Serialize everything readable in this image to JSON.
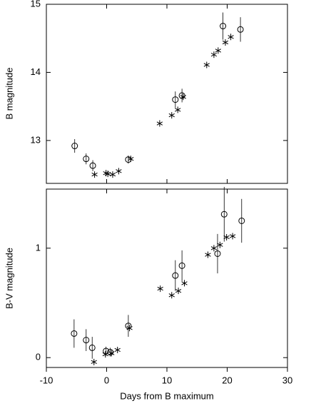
{
  "chart_data": [
    {
      "type": "scatter",
      "ylabel": "B magnitude",
      "xlim": [
        -10,
        30
      ],
      "ylim": [
        12.37,
        15
      ],
      "xticks": [
        -10,
        0,
        10,
        20,
        30
      ],
      "xtick_labels": false,
      "yticks": [
        13,
        14,
        15
      ],
      "color": "#000000",
      "series": [
        {
          "marker": "circle",
          "x": [
            -5.3,
            -3.4,
            -2.3,
            3.6,
            11.4,
            12.5,
            19.3,
            22.2
          ],
          "values": [
            12.92,
            12.73,
            12.63,
            12.72,
            13.6,
            13.66,
            14.68,
            14.63
          ],
          "errors": [
            0.1,
            0.08,
            0.08,
            0.06,
            0.12,
            0.1,
            0.2,
            0.18
          ]
        },
        {
          "marker": "asterisk",
          "x": [
            -2.0,
            -0.1,
            0.2,
            1.0,
            2.0,
            4.0,
            8.8,
            10.8,
            11.8,
            12.7,
            16.6,
            17.8,
            18.5,
            19.7,
            20.6
          ],
          "values": [
            12.5,
            12.52,
            12.51,
            12.5,
            12.55,
            12.73,
            13.25,
            13.37,
            13.45,
            13.64,
            14.11,
            14.26,
            14.32,
            14.44,
            14.52
          ]
        }
      ]
    },
    {
      "type": "scatter",
      "xlabel": "Days from B maximum",
      "ylabel": "B-V magnitude",
      "xlim": [
        -10,
        30
      ],
      "ylim": [
        -0.09,
        1.54
      ],
      "xticks": [
        -10,
        0,
        10,
        20,
        30
      ],
      "xtick_labels": true,
      "yticks": [
        0,
        1
      ],
      "color": "#000000",
      "series": [
        {
          "marker": "circle",
          "x": [
            -5.4,
            -3.4,
            -2.4,
            -0.1,
            0.6,
            3.6,
            11.4,
            12.5,
            18.4,
            19.5,
            22.4
          ],
          "values": [
            0.22,
            0.16,
            0.09,
            0.06,
            0.05,
            0.29,
            0.75,
            0.84,
            0.95,
            1.31,
            1.25
          ],
          "errors": [
            0.13,
            0.1,
            0.1,
            0.04,
            0.04,
            0.1,
            0.14,
            0.14,
            0.18,
            0.25,
            0.2
          ]
        },
        {
          "marker": "asterisk",
          "x": [
            -2.1,
            -0.2,
            0.8,
            1.8,
            3.8,
            8.9,
            10.8,
            11.9,
            12.9,
            16.8,
            17.8,
            18.8,
            19.9,
            20.9
          ],
          "values": [
            -0.04,
            0.03,
            0.04,
            0.07,
            0.27,
            0.63,
            0.57,
            0.61,
            0.68,
            0.94,
            1.0,
            1.03,
            1.1,
            1.11
          ]
        }
      ]
    }
  ]
}
